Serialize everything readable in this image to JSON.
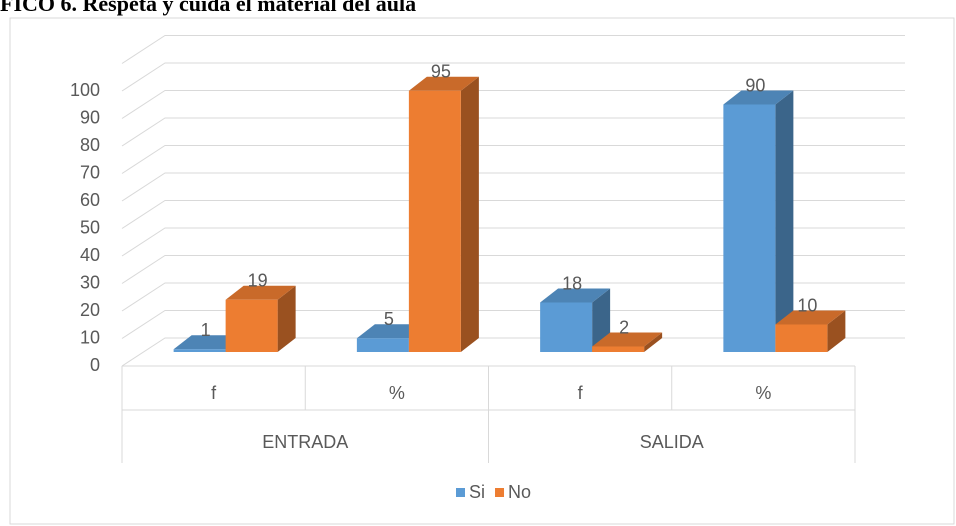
{
  "chart_data": {
    "type": "bar3d",
    "title": "FICO 6. Respeta y cuida el material del aula",
    "groups": [
      "ENTRADA",
      "SALIDA"
    ],
    "categories": [
      "f",
      "%",
      "f",
      "%"
    ],
    "series": [
      {
        "name": "Si",
        "color": "#5b9bd5",
        "values": [
          1,
          5,
          18,
          90
        ]
      },
      {
        "name": "No",
        "color": "#ed7d31",
        "values": [
          19,
          95,
          2,
          10
        ]
      }
    ],
    "ylim": [
      0,
      110
    ],
    "yticks": [
      0,
      10,
      20,
      30,
      40,
      50,
      60,
      70,
      80,
      90,
      100
    ],
    "grid": true,
    "legend": "bottom"
  }
}
